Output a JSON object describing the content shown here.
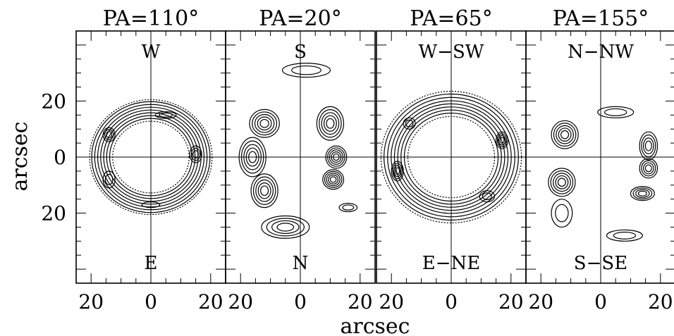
{
  "chart_data": {
    "type": "contour",
    "xlabel": "arcsec",
    "ylabel": "arcsec",
    "xlim": [
      -25,
      25
    ],
    "ylim": [
      -45,
      45
    ],
    "x_ticks": [
      -20,
      0,
      20
    ],
    "x_tick_labels": [
      "20",
      "0",
      "20"
    ],
    "y_ticks": [
      -20,
      0,
      20
    ],
    "y_tick_labels": [
      "20",
      "0",
      "20"
    ],
    "grid": false,
    "panels": [
      {
        "title": "PA=110°",
        "top_label": "W",
        "bottom_label": "E",
        "morphology": "ring",
        "rings": [
          {
            "cx": 0,
            "cy": 0,
            "r": 20.5,
            "dashed": true
          },
          {
            "cx": 0,
            "cy": 0,
            "r": 19.8
          },
          {
            "cx": 0,
            "cy": 0,
            "r": 18.8
          },
          {
            "cx": 0,
            "cy": 0,
            "r": 17.8
          },
          {
            "cx": 0,
            "cy": 0,
            "r": 16.8
          },
          {
            "cx": 0,
            "cy": 0,
            "r": 15.8
          },
          {
            "cx": 0,
            "cy": 0,
            "r": 14.8
          },
          {
            "cx": 0,
            "cy": 0,
            "r": 13.8
          },
          {
            "cx": 0,
            "cy": 0,
            "r": 12.8,
            "dashed": true
          }
        ],
        "peaks": [
          {
            "x": 5,
            "y": 15,
            "rx": 3.5,
            "ry": 1.2,
            "n": 2
          },
          {
            "x": -14,
            "y": 8,
            "rx": 2,
            "ry": 2.5,
            "n": 3
          },
          {
            "x": 15,
            "y": 1,
            "rx": 2,
            "ry": 3,
            "n": 3
          },
          {
            "x": -14,
            "y": -8,
            "rx": 2,
            "ry": 3,
            "n": 2
          },
          {
            "x": 0,
            "y": -17,
            "rx": 3,
            "ry": 1,
            "n": 1
          }
        ]
      },
      {
        "title": "PA=20°",
        "top_label": "S",
        "bottom_label": "N",
        "morphology": "broken arcs",
        "clumps": [
          {
            "x": -12,
            "y": 12,
            "rx": 5,
            "ry": 5,
            "n": 5
          },
          {
            "x": -16,
            "y": 0,
            "rx": 4.5,
            "ry": 7,
            "n": 5
          },
          {
            "x": -12,
            "y": -12,
            "rx": 4.5,
            "ry": 6,
            "n": 5
          },
          {
            "x": -5,
            "y": -25,
            "rx": 8,
            "ry": 4,
            "n": 4
          },
          {
            "x": 10,
            "y": 12,
            "rx": 4.5,
            "ry": 6,
            "n": 5
          },
          {
            "x": 12,
            "y": 0,
            "rx": 3.5,
            "ry": 4,
            "n": 5
          },
          {
            "x": 11,
            "y": -8,
            "rx": 3.5,
            "ry": 3.5,
            "n": 5
          },
          {
            "x": 2,
            "y": 31,
            "rx": 8,
            "ry": 2.5,
            "n": 2
          },
          {
            "x": 16,
            "y": -18,
            "rx": 3,
            "ry": 1.5,
            "n": 2
          }
        ]
      },
      {
        "title": "PA=65°",
        "top_label": "W−SW",
        "bottom_label": "E−NE",
        "morphology": "thick ring",
        "rings": [
          {
            "cx": 0,
            "cy": 0,
            "r": 23.5,
            "dashed": true
          },
          {
            "cx": 0,
            "cy": 0,
            "r": 22.5
          },
          {
            "cx": 0,
            "cy": 0,
            "r": 21.3
          },
          {
            "cx": 0,
            "cy": 0,
            "r": 20.1
          },
          {
            "cx": 0,
            "cy": 0,
            "r": 19
          },
          {
            "cx": 0,
            "cy": 0,
            "r": 17.9
          },
          {
            "cx": 0,
            "cy": 0,
            "r": 16.8
          },
          {
            "cx": 0,
            "cy": 0,
            "r": 15.7
          },
          {
            "cx": 0,
            "cy": 0,
            "r": 14.5,
            "dashed": true
          }
        ],
        "peaks": [
          {
            "x": -18,
            "y": -5,
            "rx": 2,
            "ry": 3.5,
            "n": 4
          },
          {
            "x": 17,
            "y": 6,
            "rx": 2,
            "ry": 3,
            "n": 4
          },
          {
            "x": -14,
            "y": 12,
            "rx": 2,
            "ry": 2,
            "n": 2
          },
          {
            "x": 12,
            "y": -14,
            "rx": 2.5,
            "ry": 2,
            "n": 2
          }
        ]
      },
      {
        "title": "PA=155°",
        "top_label": "N−NW",
        "bottom_label": "S−SE",
        "morphology": "horseshoe",
        "clumps": [
          {
            "x": -12,
            "y": 8,
            "rx": 4.5,
            "ry": 5,
            "n": 5
          },
          {
            "x": -13,
            "y": -9,
            "rx": 4.5,
            "ry": 5,
            "n": 5
          },
          {
            "x": -13,
            "y": -20,
            "rx": 3.5,
            "ry": 5,
            "n": 2
          },
          {
            "x": 16,
            "y": 4,
            "rx": 3,
            "ry": 5,
            "n": 4
          },
          {
            "x": 16,
            "y": -4,
            "rx": 3,
            "ry": 3.5,
            "n": 4
          },
          {
            "x": 14,
            "y": -13,
            "rx": 4,
            "ry": 2.5,
            "n": 4
          },
          {
            "x": 5,
            "y": 16,
            "rx": 6,
            "ry": 2,
            "n": 2
          },
          {
            "x": 8,
            "y": -28,
            "rx": 6,
            "ry": 2,
            "n": 2
          }
        ]
      }
    ]
  }
}
